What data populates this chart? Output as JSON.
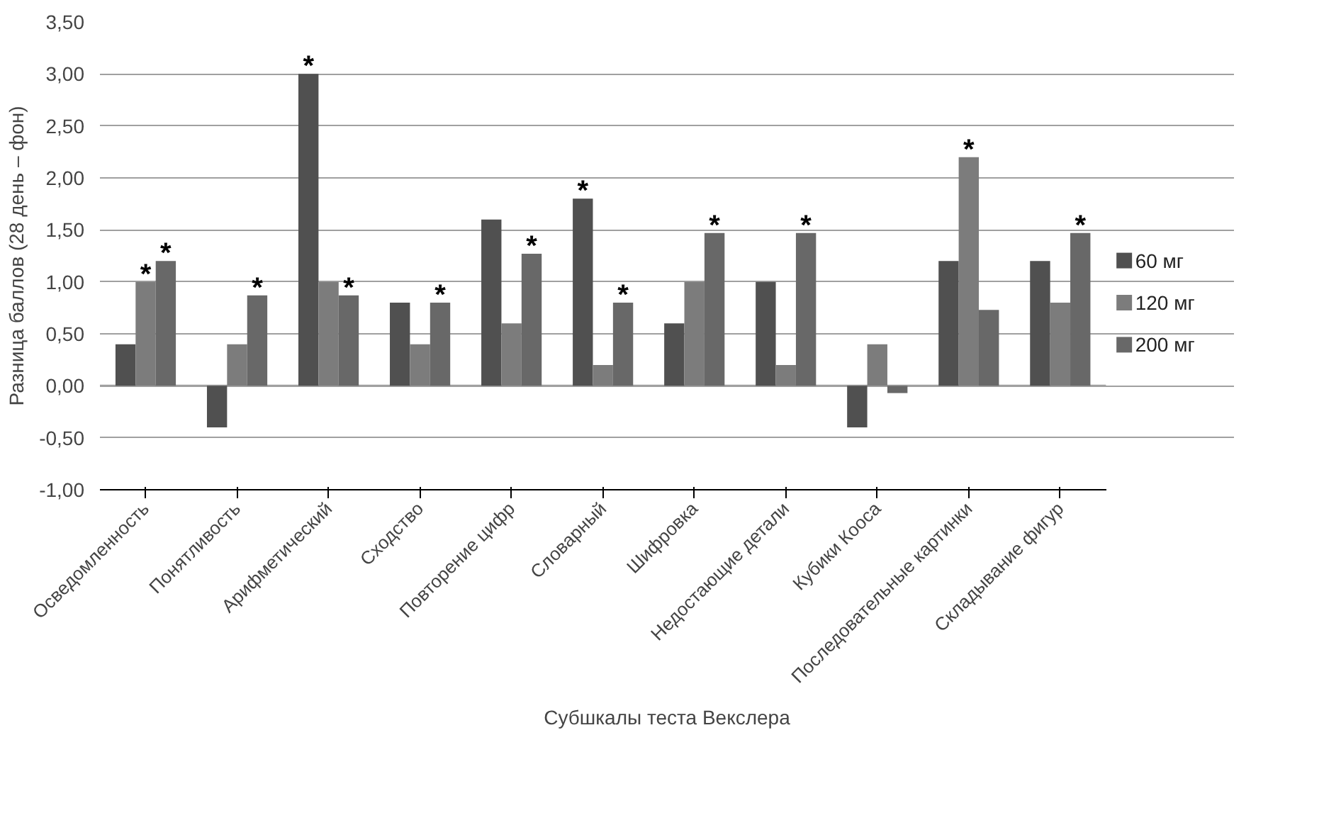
{
  "chart_data": {
    "type": "bar",
    "xlabel": "Субшкалы теста Векслера",
    "ylabel": "Разница баллов (28 день – фон)",
    "categories": [
      "Осведомленность",
      "Понятливость",
      "Арифметический",
      "Сходство",
      "Повторение цифр",
      "Словарный",
      "Шифровка",
      "Недостающие детали",
      "Кубики Кооса",
      "Последовательные картинки",
      "Складывание фигур"
    ],
    "series": [
      {
        "name": "60 мг",
        "color": "#505050",
        "values": [
          0.4,
          -0.4,
          3.0,
          0.8,
          1.6,
          1.8,
          0.6,
          1.0,
          -0.4,
          1.2,
          1.2
        ],
        "value_labels": [
          null,
          null,
          "*",
          null,
          null,
          "*",
          null,
          null,
          null,
          null,
          null
        ]
      },
      {
        "name": "120 мг",
        "color": "#7c7c7c",
        "values": [
          1.0,
          0.4,
          1.0,
          0.4,
          0.6,
          0.2,
          1.0,
          0.2,
          0.4,
          2.2,
          0.8
        ],
        "value_labels": [
          "*",
          null,
          null,
          null,
          null,
          null,
          null,
          null,
          null,
          "*",
          null
        ]
      },
      {
        "name": "200 мг",
        "color": "#686868",
        "values": [
          1.2,
          0.87,
          0.87,
          0.8,
          1.27,
          0.8,
          1.47,
          1.47,
          -0.07,
          0.73,
          1.47
        ],
        "value_labels": [
          "*",
          "*",
          "*",
          "*",
          "*",
          "*",
          "*",
          "*",
          null,
          null,
          "*"
        ]
      }
    ],
    "ylim": [
      -1.0,
      3.5
    ],
    "yticks": [
      {
        "value": -1.0,
        "label": "-1,00"
      },
      {
        "value": -0.5,
        "label": "-0,50"
      },
      {
        "value": 0,
        "label": "0,00"
      },
      {
        "value": 0.5,
        "label": "0,50"
      },
      {
        "value": 1.0,
        "label": "1,00"
      },
      {
        "value": 1.5,
        "label": "1,50"
      },
      {
        "value": 2.0,
        "label": "2,00"
      },
      {
        "value": 2.5,
        "label": "2,50"
      },
      {
        "value": 3.0,
        "label": "3,00"
      },
      {
        "value": 3.5,
        "label": "3,50"
      }
    ],
    "grid": "y",
    "legend": "right"
  }
}
